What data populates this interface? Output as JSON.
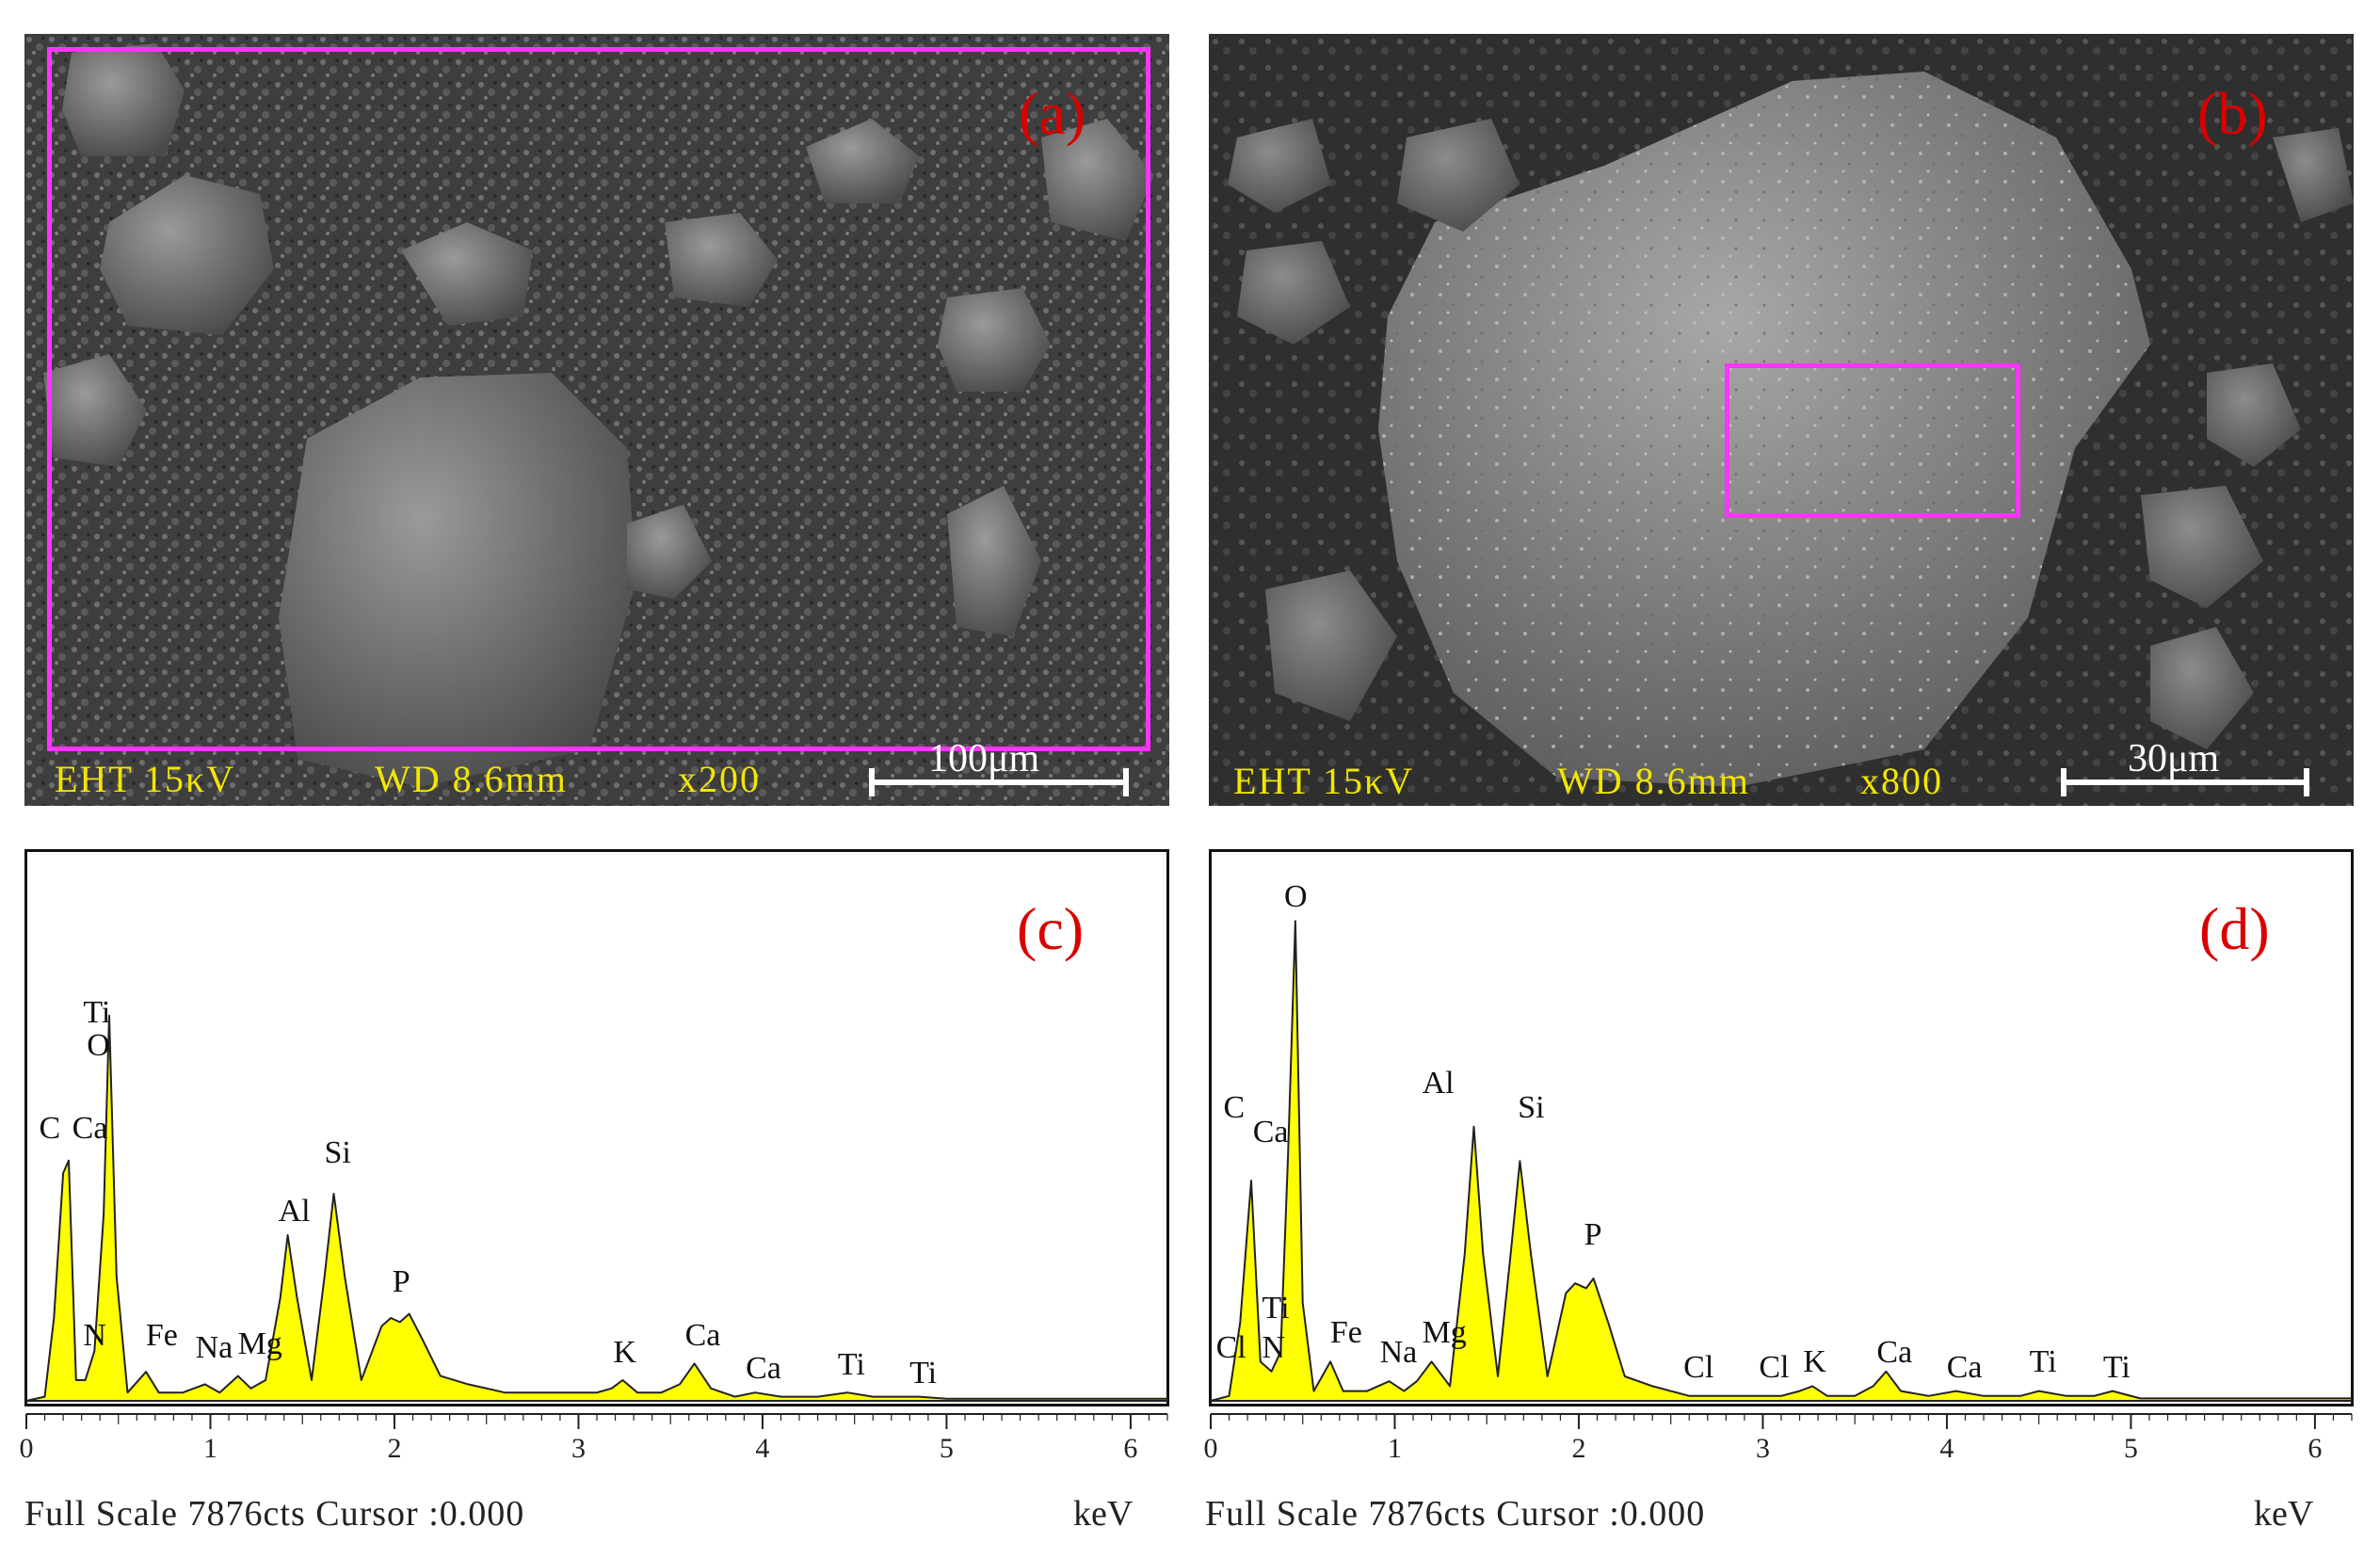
{
  "sem_a": {
    "label": "(a)",
    "eht": "EHT 15κV",
    "wd": "WD 8.6mm",
    "mag": "x200",
    "scale": "100μm"
  },
  "sem_b": {
    "label": "(b)",
    "eht": "EHT 15κV",
    "wd": "WD 8.6mm",
    "mag": "x800",
    "scale": "30μm"
  },
  "spectrum_c": {
    "label": "(c)",
    "footer": "Full Scale 7876cts Cursor :0.000",
    "unit": "keV",
    "ticks": [
      "0",
      "1",
      "2",
      "3",
      "4",
      "5",
      "6"
    ],
    "peak_labels": [
      {
        "text": "C",
        "e": 0.12,
        "h": 0.6
      },
      {
        "text": "Ca",
        "e": 0.3,
        "h": 0.6
      },
      {
        "text": "Ti",
        "e": 0.36,
        "h": 0.88
      },
      {
        "text": "O",
        "e": 0.38,
        "h": 0.8
      },
      {
        "text": "N",
        "e": 0.36,
        "h": 0.1
      },
      {
        "text": "Fe",
        "e": 0.7,
        "h": 0.1
      },
      {
        "text": "Na",
        "e": 0.97,
        "h": 0.07
      },
      {
        "text": "Mg",
        "e": 1.2,
        "h": 0.08
      },
      {
        "text": "Al",
        "e": 1.42,
        "h": 0.4
      },
      {
        "text": "Si",
        "e": 1.67,
        "h": 0.54
      },
      {
        "text": "P",
        "e": 2.04,
        "h": 0.23
      },
      {
        "text": "K",
        "e": 3.24,
        "h": 0.06
      },
      {
        "text": "Ca",
        "e": 3.63,
        "h": 0.1
      },
      {
        "text": "Ca",
        "e": 3.96,
        "h": 0.02
      },
      {
        "text": "Ti",
        "e": 4.46,
        "h": 0.03
      },
      {
        "text": "Ti",
        "e": 4.85,
        "h": 0.01
      }
    ]
  },
  "spectrum_d": {
    "label": "(d)",
    "footer": "Full Scale 7876cts Cursor :0.000",
    "unit": "keV",
    "ticks": [
      "0",
      "1",
      "2",
      "3",
      "4",
      "5",
      "6"
    ],
    "peak_labels": [
      {
        "text": "O",
        "e": 0.45,
        "h": 0.98
      },
      {
        "text": "C",
        "e": 0.12,
        "h": 0.55
      },
      {
        "text": "Ca",
        "e": 0.28,
        "h": 0.5
      },
      {
        "text": "Al",
        "e": 1.2,
        "h": 0.6
      },
      {
        "text": "Si",
        "e": 1.72,
        "h": 0.55
      },
      {
        "text": "P",
        "e": 2.08,
        "h": 0.29
      },
      {
        "text": "Ti",
        "e": 0.33,
        "h": 0.14
      },
      {
        "text": "Cl",
        "e": 0.08,
        "h": 0.06
      },
      {
        "text": "N",
        "e": 0.33,
        "h": 0.06
      },
      {
        "text": "Fe",
        "e": 0.7,
        "h": 0.09
      },
      {
        "text": "Na",
        "e": 0.97,
        "h": 0.05
      },
      {
        "text": "Mg",
        "e": 1.2,
        "h": 0.09
      },
      {
        "text": "Cl",
        "e": 2.62,
        "h": 0.02
      },
      {
        "text": "Cl",
        "e": 3.03,
        "h": 0.02
      },
      {
        "text": "K",
        "e": 3.27,
        "h": 0.03
      },
      {
        "text": "Ca",
        "e": 3.67,
        "h": 0.05
      },
      {
        "text": "Ca",
        "e": 4.05,
        "h": 0.02
      },
      {
        "text": "Ti",
        "e": 4.5,
        "h": 0.03
      },
      {
        "text": "Ti",
        "e": 4.9,
        "h": 0.02
      }
    ]
  },
  "chart_data": [
    {
      "type": "area",
      "title": "(c)",
      "xlabel": "keV",
      "ylabel": "",
      "xlim": [
        0,
        6.2
      ],
      "x": [
        0,
        0.1,
        0.15,
        0.2,
        0.23,
        0.27,
        0.32,
        0.37,
        0.42,
        0.45,
        0.49,
        0.55,
        0.65,
        0.72,
        0.85,
        0.97,
        1.05,
        1.15,
        1.22,
        1.3,
        1.38,
        1.42,
        1.47,
        1.55,
        1.62,
        1.67,
        1.73,
        1.82,
        1.93,
        1.98,
        2.03,
        2.08,
        2.15,
        2.25,
        2.4,
        2.6,
        2.9,
        3.1,
        3.18,
        3.24,
        3.32,
        3.45,
        3.55,
        3.63,
        3.72,
        3.85,
        3.96,
        4.1,
        4.3,
        4.46,
        4.6,
        4.75,
        4.85,
        5.0,
        5.4,
        6.2
      ],
      "values": [
        0,
        0.01,
        0.2,
        0.55,
        0.58,
        0.05,
        0.05,
        0.12,
        0.45,
        0.93,
        0.3,
        0.02,
        0.07,
        0.02,
        0.02,
        0.04,
        0.02,
        0.06,
        0.03,
        0.05,
        0.25,
        0.4,
        0.25,
        0.05,
        0.3,
        0.5,
        0.3,
        0.05,
        0.18,
        0.2,
        0.19,
        0.21,
        0.15,
        0.06,
        0.04,
        0.02,
        0.02,
        0.02,
        0.03,
        0.05,
        0.02,
        0.02,
        0.04,
        0.09,
        0.03,
        0.01,
        0.02,
        0.01,
        0.01,
        0.02,
        0.01,
        0.01,
        0.01,
        0.005,
        0.005,
        0.005
      ]
    },
    {
      "type": "area",
      "title": "(d)",
      "xlabel": "keV",
      "ylabel": "",
      "xlim": [
        0,
        6.2
      ],
      "x": [
        0,
        0.1,
        0.16,
        0.22,
        0.27,
        0.33,
        0.38,
        0.42,
        0.46,
        0.5,
        0.56,
        0.65,
        0.72,
        0.85,
        0.97,
        1.05,
        1.12,
        1.2,
        1.3,
        1.38,
        1.43,
        1.48,
        1.56,
        1.63,
        1.68,
        1.74,
        1.83,
        1.93,
        1.98,
        2.04,
        2.08,
        2.16,
        2.25,
        2.4,
        2.6,
        2.9,
        3.1,
        3.2,
        3.27,
        3.35,
        3.5,
        3.6,
        3.67,
        3.75,
        3.9,
        4.05,
        4.2,
        4.4,
        4.5,
        4.65,
        4.8,
        4.9,
        5.05,
        5.4,
        6.2
      ],
      "values": [
        0,
        0.01,
        0.16,
        0.45,
        0.08,
        0.06,
        0.1,
        0.5,
        0.98,
        0.2,
        0.02,
        0.08,
        0.02,
        0.02,
        0.04,
        0.02,
        0.04,
        0.08,
        0.03,
        0.3,
        0.56,
        0.3,
        0.05,
        0.3,
        0.49,
        0.3,
        0.05,
        0.22,
        0.24,
        0.23,
        0.25,
        0.16,
        0.05,
        0.03,
        0.01,
        0.01,
        0.01,
        0.02,
        0.03,
        0.01,
        0.01,
        0.03,
        0.06,
        0.02,
        0.01,
        0.02,
        0.01,
        0.01,
        0.02,
        0.01,
        0.01,
        0.02,
        0.005,
        0.005,
        0.005
      ]
    }
  ]
}
